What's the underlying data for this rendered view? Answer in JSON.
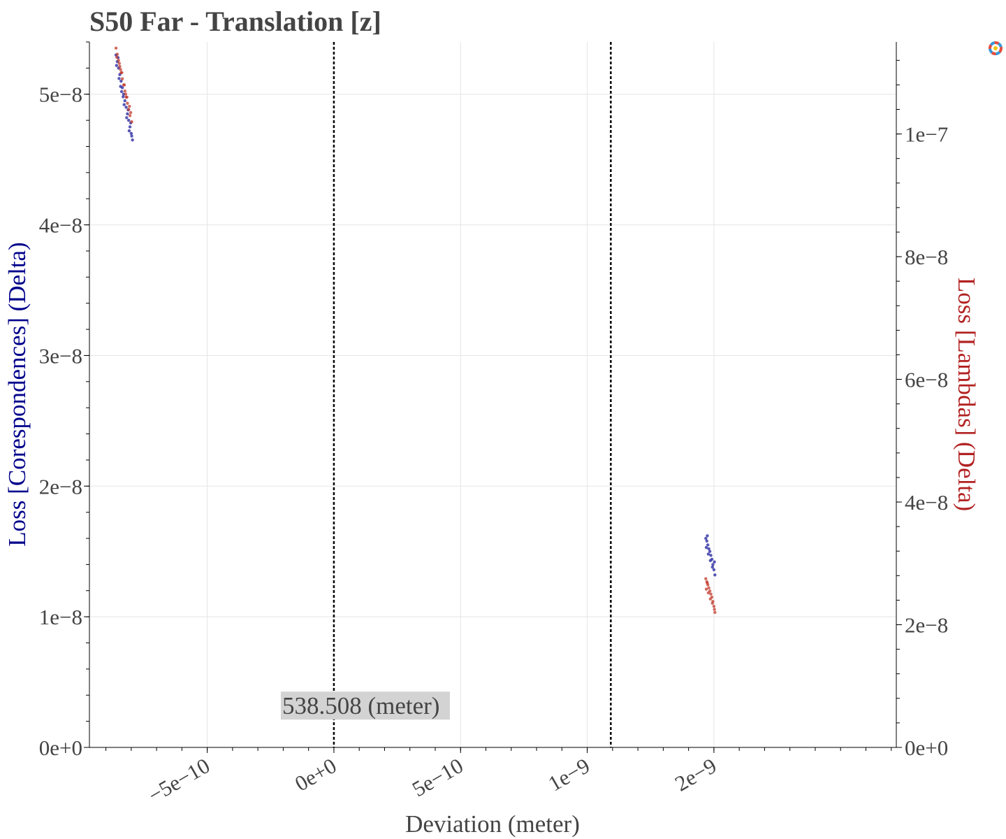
{
  "chart_data": {
    "type": "scatter",
    "title": "S50 Far - Translation [z]",
    "xlabel": "Deviation (meter)",
    "ylabel_left": "Loss [Corespondences] (Delta)",
    "ylabel_right": "Loss [Lambdas] (Delta)",
    "xlim": [
      -9.65e-10,
      2.22e-09
    ],
    "ylim_left": [
      0,
      5.4e-08
    ],
    "ylim_right": [
      0,
      1.15e-07
    ],
    "x_ticks": [
      {
        "value": -5e-10,
        "label": "−5e−10"
      },
      {
        "value": 0,
        "label": "0e+0"
      },
      {
        "value": 5e-10,
        "label": "5e−10"
      },
      {
        "value": 1e-09,
        "label": "1e−9"
      },
      {
        "value": 1.5e-09,
        "label": "2e−9"
      }
    ],
    "y_left_ticks": [
      {
        "value": 0,
        "label": "0e+0"
      },
      {
        "value": 1e-08,
        "label": "1e−8"
      },
      {
        "value": 2e-08,
        "label": "2e−8"
      },
      {
        "value": 3e-08,
        "label": "3e−8"
      },
      {
        "value": 4e-08,
        "label": "4e−8"
      },
      {
        "value": 5e-08,
        "label": "5e−8"
      }
    ],
    "y_right_ticks": [
      {
        "value": 0,
        "label": "0e+0"
      },
      {
        "value": 2e-08,
        "label": "2e−8"
      },
      {
        "value": 4e-08,
        "label": "4e−8"
      },
      {
        "value": 6e-08,
        "label": "6e−8"
      },
      {
        "value": 8e-08,
        "label": "8e−8"
      },
      {
        "value": 1e-07,
        "label": "1e−7"
      }
    ],
    "vertical_lines": [
      0,
      1.093e-09
    ],
    "annotation": {
      "text": "538.508 (meter)",
      "x": 0,
      "y": 3.2e-09
    },
    "grid": true,
    "colors": {
      "correspondences": "#1f1f9c",
      "lambdas": "#c0392b",
      "title": "#444444",
      "left_label": "#00008b",
      "right_label": "#b22222"
    },
    "series": [
      {
        "name": "Loss [Corespondences] (Delta)",
        "axis": "left",
        "color": "#1f1f9c",
        "points": [
          [
            -8.6e-10,
            5.3e-08
          ],
          [
            -8.55e-10,
            5.25e-08
          ],
          [
            -8.5e-10,
            5.2e-08
          ],
          [
            -8.45e-10,
            5.15e-08
          ],
          [
            -8.4e-10,
            5.1e-08
          ],
          [
            -8.35e-10,
            5.05e-08
          ],
          [
            -8.3e-10,
            5e-08
          ],
          [
            -8.25e-10,
            4.95e-08
          ],
          [
            -8.2e-10,
            4.9e-08
          ],
          [
            -8.15e-10,
            4.85e-08
          ],
          [
            -8.1e-10,
            4.8e-08
          ],
          [
            -8.05e-10,
            4.75e-08
          ],
          [
            -8e-10,
            4.7e-08
          ],
          [
            -7.95e-10,
            4.65e-08
          ],
          [
            -8.58e-10,
            5.22e-08
          ],
          [
            -8.48e-10,
            5.12e-08
          ],
          [
            -8.38e-10,
            5.02e-08
          ],
          [
            -8.28e-10,
            4.92e-08
          ],
          [
            -8.18e-10,
            4.82e-08
          ],
          [
            -8.08e-10,
            4.72e-08
          ],
          [
            -7.98e-10,
            4.68e-08
          ],
          [
            -8.52e-10,
            5.28e-08
          ],
          [
            -8.42e-10,
            5.06e-08
          ],
          [
            -8.32e-10,
            4.98e-08
          ],
          [
            -8.12e-10,
            4.88e-08
          ],
          [
            -8.02e-10,
            4.78e-08
          ],
          [
            1.468e-09,
            1.6e-08
          ],
          [
            1.472e-09,
            1.58e-08
          ],
          [
            1.476e-09,
            1.55e-08
          ],
          [
            1.48e-09,
            1.52e-08
          ],
          [
            1.484e-09,
            1.5e-08
          ],
          [
            1.488e-09,
            1.47e-08
          ],
          [
            1.492e-09,
            1.44e-08
          ],
          [
            1.496e-09,
            1.4e-08
          ],
          [
            1.5e-09,
            1.36e-08
          ],
          [
            1.504e-09,
            1.32e-08
          ],
          [
            1.47e-09,
            1.53e-08
          ],
          [
            1.478e-09,
            1.48e-08
          ],
          [
            1.486e-09,
            1.43e-08
          ],
          [
            1.494e-09,
            1.38e-08
          ],
          [
            1.502e-09,
            1.42e-08
          ],
          [
            1.474e-09,
            1.62e-08
          ]
        ]
      },
      {
        "name": "Loss [Lambdas] (Delta)",
        "axis": "right",
        "color": "#c0392b",
        "points": [
          [
            -8.6e-10,
            1.14e-07
          ],
          [
            -8.55e-10,
            1.13e-07
          ],
          [
            -8.5e-10,
            1.12e-07
          ],
          [
            -8.45e-10,
            1.11e-07
          ],
          [
            -8.4e-10,
            1.1e-07
          ],
          [
            -8.35e-10,
            1.09e-07
          ],
          [
            -8.3e-10,
            1.08e-07
          ],
          [
            -8.25e-10,
            1.07e-07
          ],
          [
            -8.2e-10,
            1.06e-07
          ],
          [
            -8.15e-10,
            1.05e-07
          ],
          [
            -8.1e-10,
            1.04e-07
          ],
          [
            -8.05e-10,
            1.03e-07
          ],
          [
            -7.98e-10,
            1.02e-07
          ],
          [
            -8.57e-10,
            1.125e-07
          ],
          [
            -8.47e-10,
            1.115e-07
          ],
          [
            -8.37e-10,
            1.1e-07
          ],
          [
            -8.27e-10,
            1.08e-07
          ],
          [
            -8.17e-10,
            1.06e-07
          ],
          [
            -8.07e-10,
            1.045e-07
          ],
          [
            -8.02e-10,
            1.035e-07
          ],
          [
            -8.42e-10,
            1.105e-07
          ],
          [
            -8.22e-10,
            1.065e-07
          ],
          [
            1.468e-09,
            2.75e-08
          ],
          [
            1.472e-09,
            2.7e-08
          ],
          [
            1.476e-09,
            2.65e-08
          ],
          [
            1.48e-09,
            2.6e-08
          ],
          [
            1.484e-09,
            2.55e-08
          ],
          [
            1.488e-09,
            2.5e-08
          ],
          [
            1.492e-09,
            2.45e-08
          ],
          [
            1.496e-09,
            2.38e-08
          ],
          [
            1.5e-09,
            2.3e-08
          ],
          [
            1.504e-09,
            2.2e-08
          ],
          [
            1.47e-09,
            2.58e-08
          ],
          [
            1.478e-09,
            2.52e-08
          ],
          [
            1.486e-09,
            2.42e-08
          ],
          [
            1.494e-09,
            2.35e-08
          ],
          [
            1.502e-09,
            2.25e-08
          ],
          [
            1.474e-09,
            2.68e-08
          ]
        ]
      }
    ]
  }
}
